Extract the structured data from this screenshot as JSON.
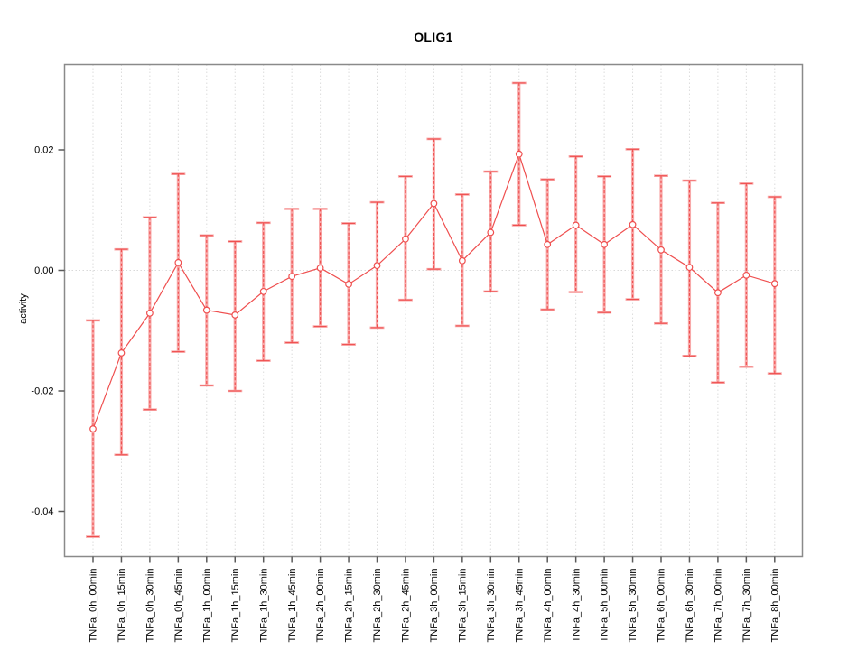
{
  "chart_data": {
    "type": "line",
    "title": "OLIG1",
    "ylabel": "activity",
    "xlabel": "",
    "legend": "none",
    "grid": "vertical dotted gridline per category + dotted horizontal line at y=0",
    "point_style": "open-circle with error bars (pink thick band + red dashed whisker)",
    "categories": [
      "TNFa_0h_00min",
      "TNFa_0h_15min",
      "TNFa_0h_30min",
      "TNFa_0h_45min",
      "TNFa_1h_00min",
      "TNFa_1h_15min",
      "TNFa_1h_30min",
      "TNFa_1h_45min",
      "TNFa_2h_00min",
      "TNFa_2h_15min",
      "TNFa_2h_30min",
      "TNFa_2h_45min",
      "TNFa_3h_00min",
      "TNFa_3h_15min",
      "TNFa_3h_30min",
      "TNFa_3h_45min",
      "TNFa_4h_00min",
      "TNFa_4h_30min",
      "TNFa_5h_00min",
      "TNFa_5h_30min",
      "TNFa_6h_00min",
      "TNFa_6h_30min",
      "TNFa_7h_00min",
      "TNFa_7h_30min",
      "TNFa_8h_00min"
    ],
    "values": [
      -0.0263,
      -0.0137,
      -0.0071,
      0.0013,
      -0.0066,
      -0.0074,
      -0.0035,
      -0.001,
      0.0004,
      -0.0023,
      0.0008,
      0.0052,
      0.0111,
      0.0016,
      0.0063,
      0.0193,
      0.0043,
      0.0075,
      0.0043,
      0.0076,
      0.0034,
      0.0005,
      -0.0037,
      -0.0008,
      -0.0022
    ],
    "error_high": [
      -0.0083,
      0.0035,
      0.0088,
      0.016,
      0.0058,
      0.0048,
      0.0079,
      0.0102,
      0.0102,
      0.0078,
      0.0113,
      0.0156,
      0.0218,
      0.0126,
      0.0164,
      0.0311,
      0.0151,
      0.0189,
      0.0156,
      0.0201,
      0.0157,
      0.0149,
      0.0112,
      0.0144,
      0.0122
    ],
    "error_low": [
      -0.0442,
      -0.0306,
      -0.0231,
      -0.0135,
      -0.0191,
      -0.02,
      -0.015,
      -0.012,
      -0.0093,
      -0.0123,
      -0.0095,
      -0.0049,
      0.0002,
      -0.0092,
      -0.0035,
      0.0075,
      -0.0065,
      -0.0036,
      -0.007,
      -0.0048,
      -0.0088,
      -0.0142,
      -0.0186,
      -0.016,
      -0.0171
    ],
    "ytick_labels": [
      "0.02",
      "0.00",
      "-0.02",
      "-0.04"
    ],
    "yticks": [
      0.02,
      0.0,
      -0.02,
      -0.04
    ],
    "ylim": [
      -0.0474,
      0.0341
    ],
    "colors": {
      "series_red": "#ef4f4f",
      "errorbar_pink": "#f8a9a9",
      "gridline": "#dcdcdc",
      "zero_line": "#d9d9d9",
      "axis_box": "#8a8a8a",
      "tick": "#5a5a5a",
      "text": "#000000",
      "background": "#ffffff",
      "point_fill": "#ffffff"
    }
  }
}
